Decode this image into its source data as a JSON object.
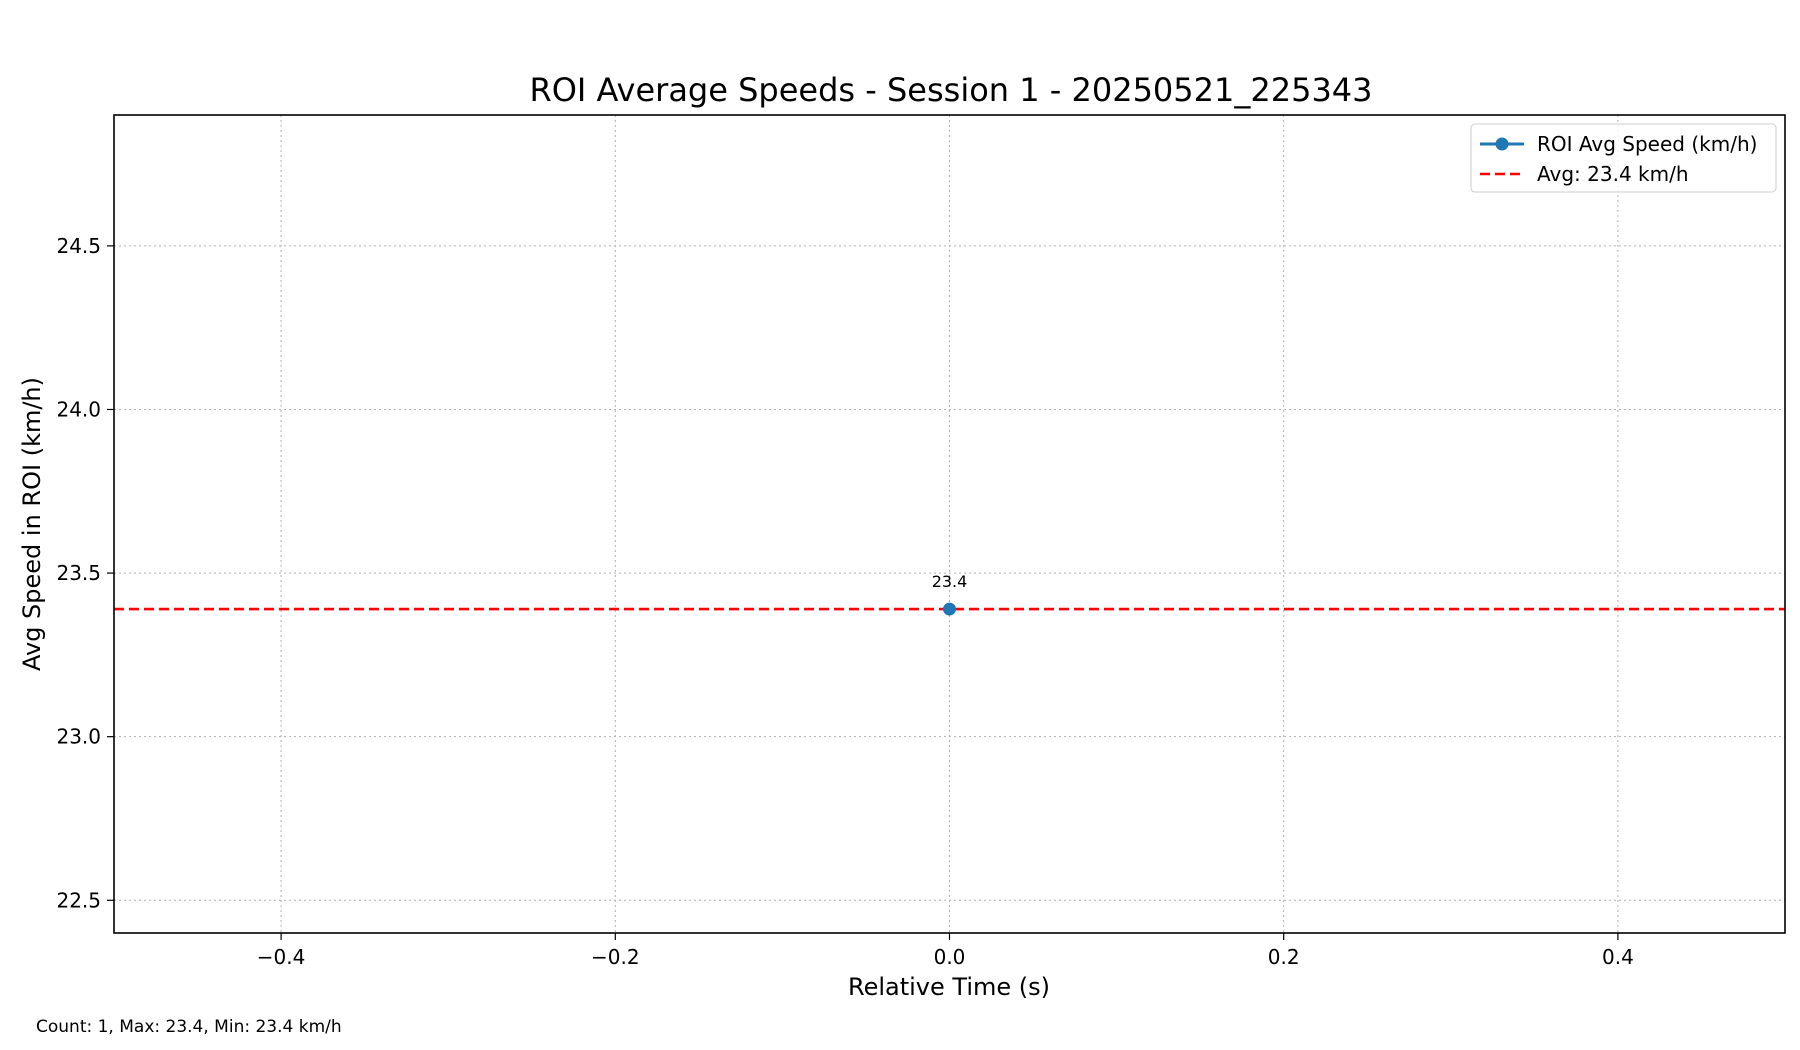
{
  "chart_data": {
    "type": "line",
    "title": "ROI Average Speeds - Session 1 - 20250521_225343",
    "xlabel": "Relative Time (s)",
    "ylabel": "Avg Speed in ROI (km/h)",
    "xlim": [
      -0.5,
      0.5
    ],
    "ylim": [
      22.4,
      24.9
    ],
    "x_ticks": [
      -0.4,
      -0.2,
      0.0,
      0.2,
      0.4
    ],
    "x_tick_labels": [
      "−0.4",
      "−0.2",
      "0.0",
      "0.2",
      "0.4"
    ],
    "y_ticks": [
      22.5,
      23.0,
      23.5,
      24.0,
      24.5
    ],
    "y_tick_labels": [
      "22.5",
      "23.0",
      "23.5",
      "24.0",
      "24.5"
    ],
    "grid": true,
    "legend_position": "top-right",
    "series": [
      {
        "name": "ROI Avg Speed (km/h)",
        "color": "#1f77b4",
        "marker": "circle",
        "points": [
          {
            "x": 0.0,
            "y": 23.39,
            "label": "23.4"
          }
        ]
      }
    ],
    "reference_lines": [
      {
        "name": "Avg: 23.4 km/h",
        "y": 23.39,
        "color": "#ff0000",
        "style": "dashed"
      }
    ],
    "footer_note": "Count: 1, Max: 23.4, Min: 23.4 km/h"
  }
}
